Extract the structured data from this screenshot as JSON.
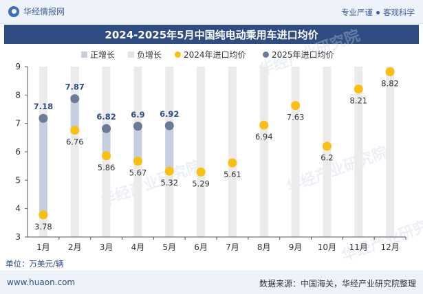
{
  "header": {
    "brand": "华经情报网",
    "tagline_left": "专业严谨",
    "tagline_right": "客观科学"
  },
  "title": "2024-2025年5月中国纯电动乘用车进口均价",
  "unit_label": "单位：万美元/辆",
  "footer": {
    "website": "www.huaon.com",
    "source": "数据来源：中国海关，华经产业研究院整理"
  },
  "watermark": "华经产业研究院",
  "colors": {
    "header_bg": "#eef3fb",
    "title_bg": "#2e4d82",
    "series_2024": "#fbbf0f",
    "series_2025": "#6b7a99",
    "up_bar": "#c5cfe0",
    "down_bar": "#e4e4e4",
    "background_column": "#ebebeb",
    "label_2025": "#2e4d82"
  },
  "chart_data": {
    "type": "line",
    "title": "2024-2025年5月中国纯电动乘用车进口均价",
    "categories": [
      "1月",
      "2月",
      "3月",
      "4月",
      "5月",
      "6月",
      "7月",
      "8月",
      "9月",
      "10月",
      "11月",
      "12月"
    ],
    "legend": [
      "正增长",
      "负增长",
      "2024年进口均价",
      "2025年进口均价"
    ],
    "legend_position": "top",
    "series": [
      {
        "name": "2024年进口均价",
        "values": [
          3.78,
          6.76,
          5.86,
          5.67,
          5.32,
          5.29,
          5.61,
          6.94,
          7.63,
          6.2,
          8.21,
          8.82
        ]
      },
      {
        "name": "2025年进口均价",
        "values": [
          7.18,
          7.87,
          6.82,
          6.9,
          6.92,
          null,
          null,
          null,
          null,
          null,
          null,
          null
        ]
      }
    ],
    "ylim": [
      3,
      9
    ],
    "yticks": [
      3,
      4,
      5,
      6,
      7,
      8,
      9
    ],
    "xlabel": "",
    "ylabel": ""
  }
}
